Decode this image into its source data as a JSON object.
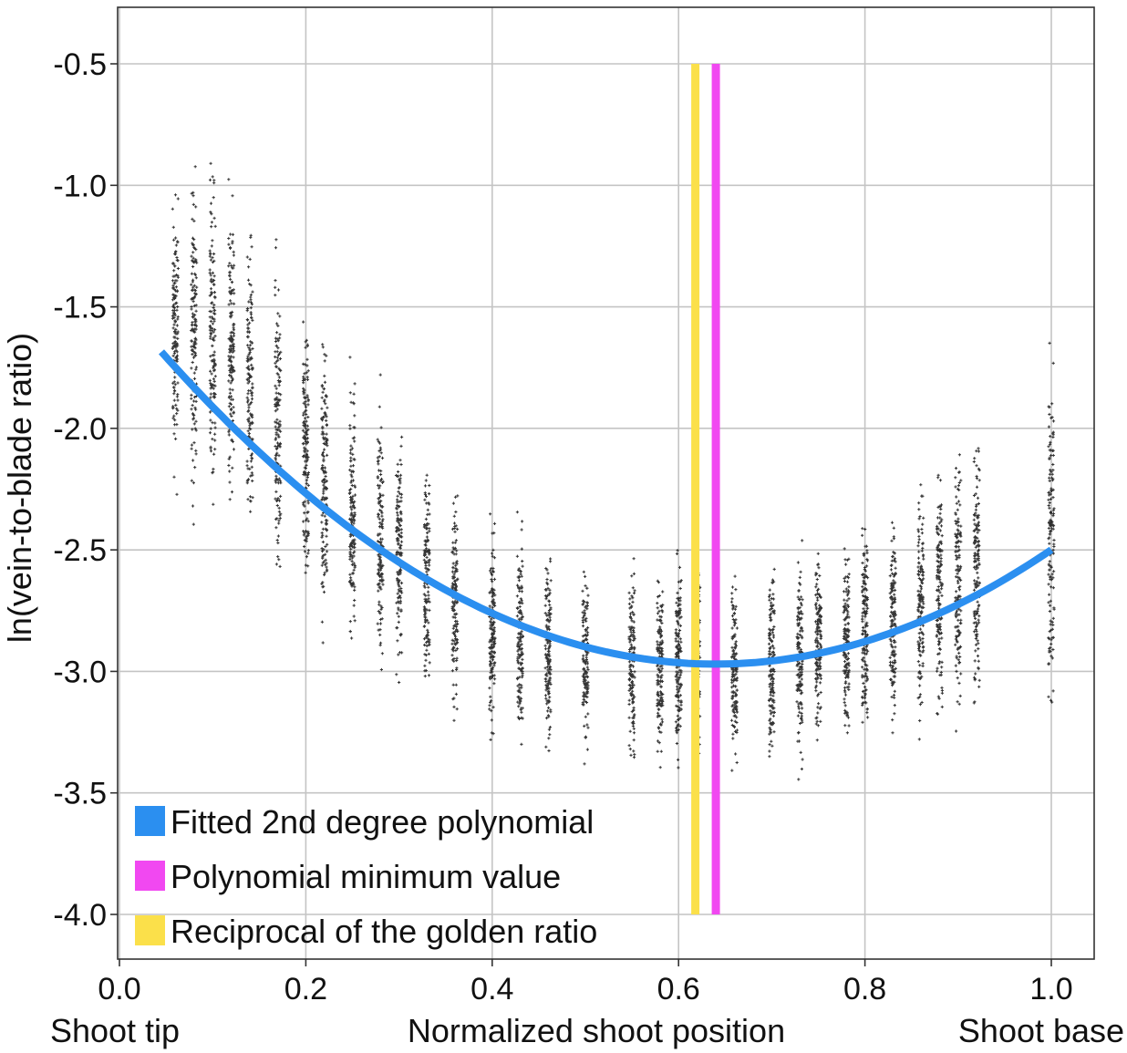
{
  "chart_data": {
    "type": "scatter",
    "xlabel": "Normalized shoot position",
    "ylabel": "ln(vein-to-blade ratio)",
    "x_end_labels": {
      "left": "Shoot tip",
      "right": "Shoot base"
    },
    "xlim": [
      0.0,
      1.05
    ],
    "ylim": [
      -4.18,
      -0.25
    ],
    "x_ticks": [
      0.0,
      0.2,
      0.4,
      0.6,
      0.8,
      1.0
    ],
    "x_tick_labels": [
      "0.0",
      "0.2",
      "0.4",
      "0.6",
      "0.8",
      "1.0"
    ],
    "y_ticks": [
      -0.5,
      -1.0,
      -1.5,
      -2.0,
      -2.5,
      -3.0,
      -3.5,
      -4.0
    ],
    "y_tick_labels": [
      "-0.5",
      "-1.0",
      "-1.5",
      "-2.0",
      "-2.5",
      "-3.0",
      "-3.5",
      "-4.0"
    ],
    "grid": true,
    "legend_position": "bottom-left",
    "series": [
      {
        "name": "Fitted 2nd degree polynomial",
        "kind": "curve",
        "color": "#2b8ff0",
        "x_range": [
          0.045,
          1.0
        ],
        "polynomial": {
          "vertex_x": 0.64,
          "vertex_y": -2.97,
          "a": 3.63
        }
      },
      {
        "name": "Polynomial minimum value",
        "kind": "vline",
        "color": "#f148f1",
        "x": 0.64,
        "y_range": [
          -4.0,
          -0.5
        ]
      },
      {
        "name": "Reciprocal of the golden ratio",
        "kind": "vline",
        "color": "#fbe04a",
        "x": 0.618,
        "y_range": [
          -4.0,
          -0.5
        ]
      },
      {
        "kind": "scatter",
        "color": "#111111",
        "columns": [
          {
            "x": 0.06,
            "y_mean": -1.62,
            "y_spread": 0.45
          },
          {
            "x": 0.08,
            "y_mean": -1.6,
            "y_spread": 0.5
          },
          {
            "x": 0.1,
            "y_mean": -1.62,
            "y_spread": 0.55
          },
          {
            "x": 0.12,
            "y_mean": -1.72,
            "y_spread": 0.5
          },
          {
            "x": 0.14,
            "y_mean": -1.82,
            "y_spread": 0.48
          },
          {
            "x": 0.17,
            "y_mean": -1.95,
            "y_spread": 0.45
          },
          {
            "x": 0.2,
            "y_mean": -2.1,
            "y_spread": 0.45
          },
          {
            "x": 0.22,
            "y_mean": -2.2,
            "y_spread": 0.45
          },
          {
            "x": 0.25,
            "y_mean": -2.35,
            "y_spread": 0.4
          },
          {
            "x": 0.28,
            "y_mean": -2.45,
            "y_spread": 0.4
          },
          {
            "x": 0.3,
            "y_mean": -2.52,
            "y_spread": 0.38
          },
          {
            "x": 0.33,
            "y_mean": -2.62,
            "y_spread": 0.38
          },
          {
            "x": 0.36,
            "y_mean": -2.72,
            "y_spread": 0.35
          },
          {
            "x": 0.4,
            "y_mean": -2.82,
            "y_spread": 0.35
          },
          {
            "x": 0.43,
            "y_mean": -2.86,
            "y_spread": 0.33
          },
          {
            "x": 0.46,
            "y_mean": -2.9,
            "y_spread": 0.32
          },
          {
            "x": 0.5,
            "y_mean": -2.95,
            "y_spread": 0.3
          },
          {
            "x": 0.55,
            "y_mean": -2.98,
            "y_spread": 0.3
          },
          {
            "x": 0.58,
            "y_mean": -2.98,
            "y_spread": 0.3
          },
          {
            "x": 0.6,
            "y_mean": -2.95,
            "y_spread": 0.35
          },
          {
            "x": 0.62,
            "y_mean": -2.95,
            "y_spread": 0.35
          },
          {
            "x": 0.66,
            "y_mean": -2.98,
            "y_spread": 0.3
          },
          {
            "x": 0.7,
            "y_mean": -2.96,
            "y_spread": 0.3
          },
          {
            "x": 0.73,
            "y_mean": -2.94,
            "y_spread": 0.32
          },
          {
            "x": 0.75,
            "y_mean": -2.9,
            "y_spread": 0.32
          },
          {
            "x": 0.78,
            "y_mean": -2.86,
            "y_spread": 0.33
          },
          {
            "x": 0.8,
            "y_mean": -2.82,
            "y_spread": 0.35
          },
          {
            "x": 0.83,
            "y_mean": -2.78,
            "y_spread": 0.35
          },
          {
            "x": 0.86,
            "y_mean": -2.72,
            "y_spread": 0.38
          },
          {
            "x": 0.88,
            "y_mean": -2.68,
            "y_spread": 0.4
          },
          {
            "x": 0.9,
            "y_mean": -2.64,
            "y_spread": 0.42
          },
          {
            "x": 0.92,
            "y_mean": -2.6,
            "y_spread": 0.42
          },
          {
            "x": 1.0,
            "y_mean": -2.45,
            "y_spread": 0.55
          }
        ]
      }
    ]
  }
}
